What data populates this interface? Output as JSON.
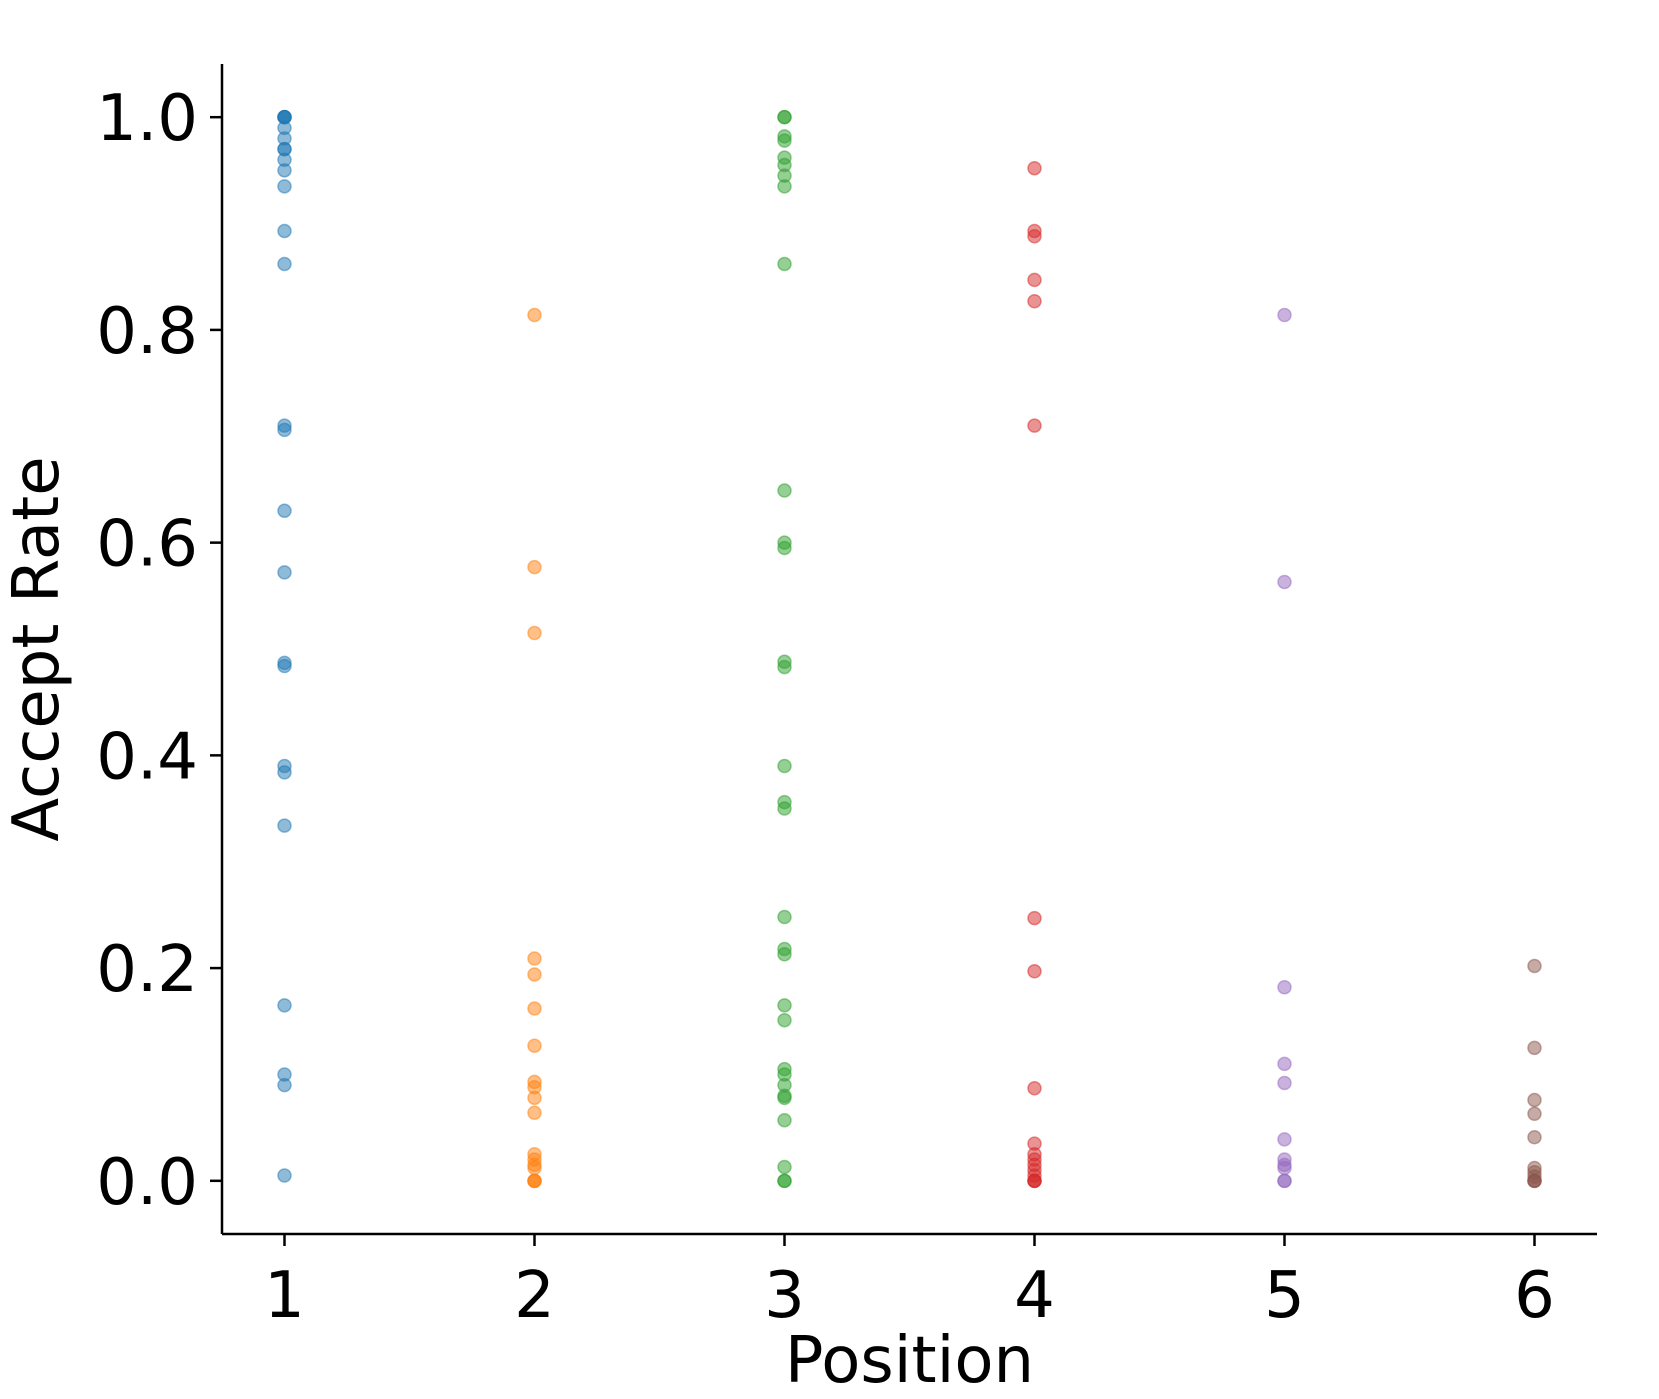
{
  "chart_data": {
    "type": "scatter",
    "title": "",
    "xlabel": "Position",
    "ylabel": "Accept Rate",
    "xlim": [
      0.75,
      6.25
    ],
    "ylim": [
      -0.05,
      1.05
    ],
    "xticks": [
      "1",
      "2",
      "3",
      "4",
      "5",
      "6"
    ],
    "yticks": [
      "0.0",
      "0.2",
      "0.4",
      "0.6",
      "0.8",
      "1.0"
    ],
    "grid": false,
    "legend": "none",
    "series": [
      {
        "x": 1,
        "color": "#1f77b4",
        "values": [
          1.0,
          1.0,
          1.0,
          1.0,
          0.99,
          0.98,
          0.97,
          0.97,
          0.96,
          0.95,
          0.935,
          0.893,
          0.862,
          0.71,
          0.706,
          0.63,
          0.572,
          0.487,
          0.484,
          0.39,
          0.384,
          0.334,
          0.165,
          0.1,
          0.09,
          0.005
        ]
      },
      {
        "x": 2,
        "color": "#ff7f0e",
        "values": [
          0.814,
          0.577,
          0.515,
          0.209,
          0.194,
          0.162,
          0.127,
          0.093,
          0.088,
          0.078,
          0.064,
          0.025,
          0.02,
          0.015,
          0.012,
          0.0,
          0.0,
          0.0
        ]
      },
      {
        "x": 3,
        "color": "#2ca02c",
        "values": [
          1.0,
          1.0,
          0.982,
          0.978,
          0.962,
          0.955,
          0.945,
          0.935,
          0.862,
          0.649,
          0.6,
          0.595,
          0.488,
          0.483,
          0.39,
          0.356,
          0.35,
          0.248,
          0.218,
          0.213,
          0.165,
          0.151,
          0.105,
          0.1,
          0.09,
          0.08,
          0.078,
          0.057,
          0.013,
          0.0,
          0.0
        ]
      },
      {
        "x": 4,
        "color": "#d62728",
        "values": [
          0.952,
          0.893,
          0.888,
          0.847,
          0.827,
          0.71,
          0.247,
          0.197,
          0.087,
          0.035,
          0.025,
          0.02,
          0.015,
          0.01,
          0.005,
          0.0,
          0.0,
          0.0
        ]
      },
      {
        "x": 5,
        "color": "#9467bd",
        "values": [
          0.814,
          0.563,
          0.182,
          0.11,
          0.092,
          0.039,
          0.02,
          0.015,
          0.012,
          0.0,
          0.0
        ]
      },
      {
        "x": 6,
        "color": "#8c564b",
        "values": [
          0.202,
          0.125,
          0.076,
          0.063,
          0.041,
          0.012,
          0.008,
          0.004,
          0.0,
          0.0,
          0.0
        ]
      }
    ]
  }
}
